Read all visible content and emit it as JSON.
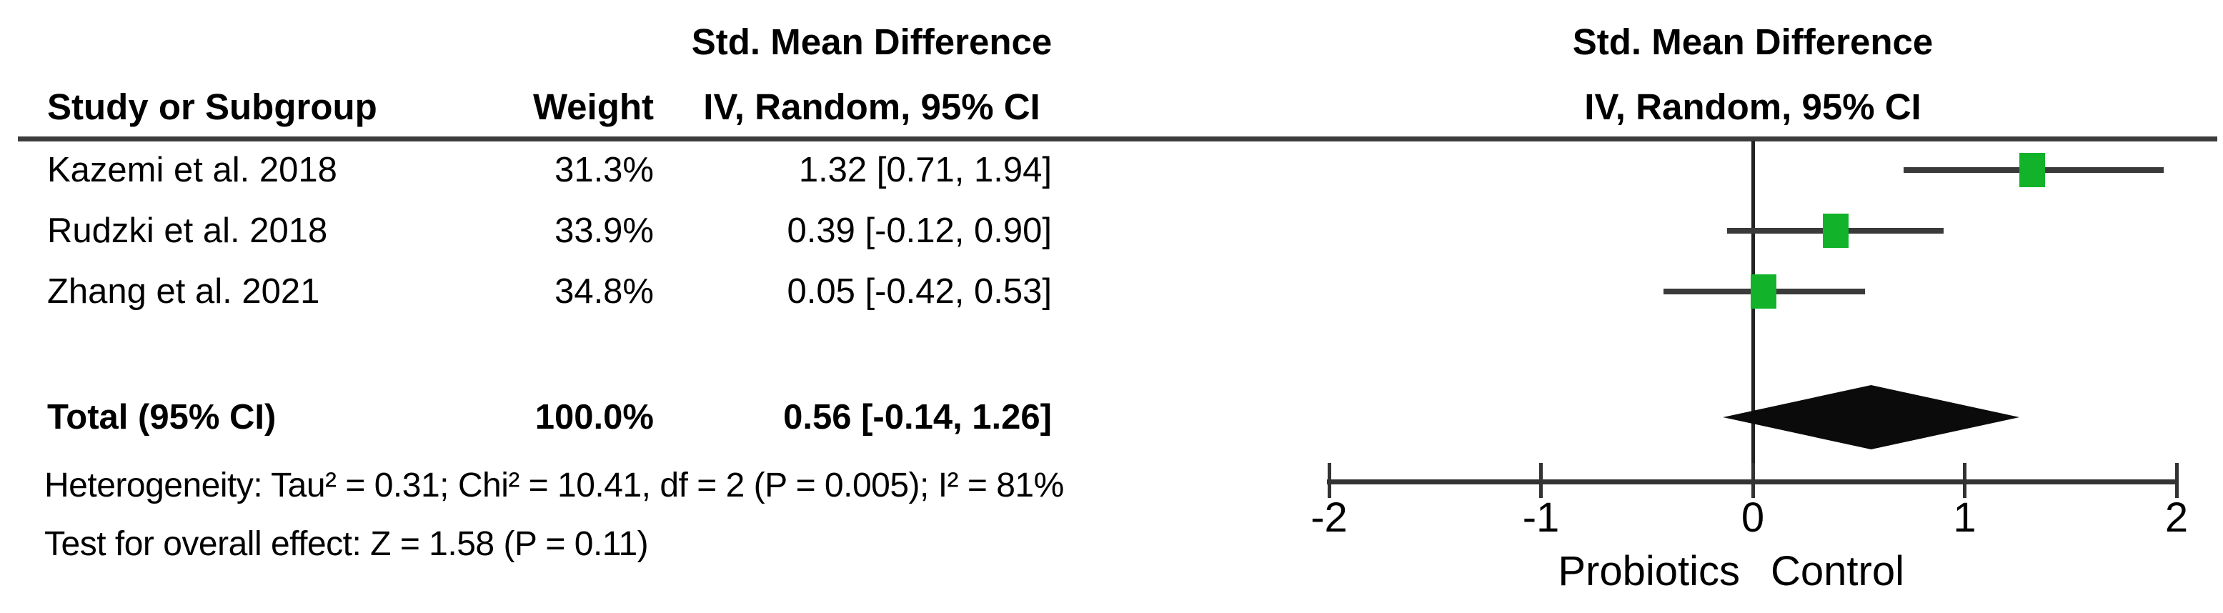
{
  "chart_data": {
    "type": "scatter",
    "subtype": "forest-plot-meta-analysis",
    "columns": {
      "study": "Study or Subgroup",
      "weight": "Weight",
      "effect_line1": "Std. Mean Difference",
      "effect_line2": "IV, Random, 95% CI"
    },
    "studies": [
      {
        "label": "Kazemi et al. 2018",
        "weight_pct": 31.3,
        "weight_text": "31.3%",
        "smd": 1.32,
        "ci_low": 0.71,
        "ci_high": 1.94,
        "ci_text": "1.32 [0.71, 1.94]"
      },
      {
        "label": "Rudzki et al. 2018",
        "weight_pct": 33.9,
        "weight_text": "33.9%",
        "smd": 0.39,
        "ci_low": -0.12,
        "ci_high": 0.9,
        "ci_text": "0.39 [-0.12, 0.90]"
      },
      {
        "label": "Zhang et al. 2021",
        "weight_pct": 34.8,
        "weight_text": "34.8%",
        "smd": 0.05,
        "ci_low": -0.42,
        "ci_high": 0.53,
        "ci_text": "0.05 [-0.42, 0.53]"
      }
    ],
    "total": {
      "label": "Total (95% CI)",
      "weight_pct": 100.0,
      "weight_text": "100.0%",
      "smd": 0.56,
      "ci_low": -0.14,
      "ci_high": 1.26,
      "ci_text": "0.56 [-0.14, 1.26]"
    },
    "footnotes": {
      "heterogeneity": "Heterogeneity: Tau² = 0.31; Chi² = 10.41, df = 2 (P = 0.005); I² = 81%",
      "overall_effect": "Test for overall effect: Z = 1.58 (P = 0.11)"
    },
    "x_axis": {
      "min": -2,
      "max": 2,
      "ticks": [
        -2,
        -1,
        0,
        1,
        2
      ],
      "label_left": "Probiotics",
      "label_right": "Control"
    },
    "style": {
      "marker_color": "#12b32b",
      "line_color": "#3a3a3a",
      "axis_color": "#333333",
      "zero_line_color": "#222222",
      "diamond_color": "#0b0b0b"
    }
  }
}
